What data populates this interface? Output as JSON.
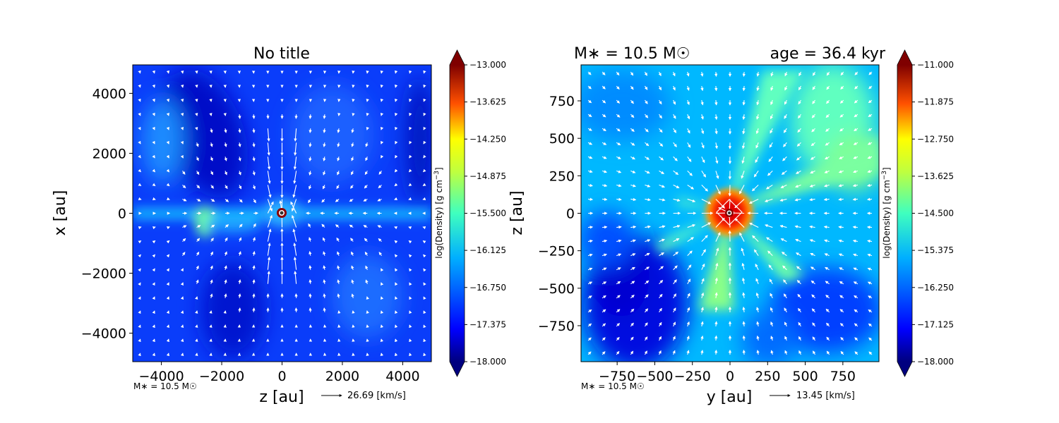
{
  "chart_data": [
    {
      "type": "heatmap",
      "title": "No title",
      "xlabel": "z [au]",
      "ylabel": "x [au]",
      "xlim": [
        -4950,
        4950
      ],
      "ylim": [
        -4950,
        4950
      ],
      "xticks": [
        -4000,
        -2000,
        0,
        2000,
        4000
      ],
      "yticks": [
        -4000,
        -2000,
        0,
        2000,
        4000
      ],
      "xtick_labels": [
        "−4000",
        "−2000",
        "0",
        "2000",
        "4000"
      ],
      "ytick_labels": [
        "−4000",
        "−2000",
        "0",
        "2000",
        "4000"
      ],
      "colorbar": {
        "label": "log(Density) [g cm",
        "label_sup": "−3",
        "label_end": "]",
        "range": [
          -18.0,
          -13.0
        ],
        "ticks": [
          -13.0,
          -13.625,
          -14.25,
          -14.875,
          -15.5,
          -16.125,
          -16.75,
          -17.375,
          -18.0
        ],
        "tick_labels": [
          "−13.000",
          "−13.625",
          "−14.250",
          "−14.875",
          "−15.500",
          "−16.125",
          "−16.750",
          "−17.375",
          "−18.000"
        ]
      },
      "annotation_mass": "M∗ = 10.5 M☉",
      "quiver_key": "26.69 [km/s]",
      "features": {
        "star_position": [
          0,
          0
        ],
        "filament": "horizontal high-density band along x = 0",
        "secondary_clump": [
          -2600,
          -300
        ]
      }
    },
    {
      "type": "heatmap",
      "title_left": "M∗ = 10.5 M☉",
      "title_right": "age = 36.4 kyr",
      "xlabel": "y [au]",
      "ylabel": "z [au]",
      "xlim": [
        -990,
        990
      ],
      "ylim": [
        -990,
        990
      ],
      "xticks": [
        -750,
        -500,
        -250,
        0,
        250,
        500,
        750
      ],
      "yticks": [
        -750,
        -500,
        -250,
        0,
        250,
        500,
        750
      ],
      "xtick_labels": [
        "−750",
        "−500",
        "−250",
        "0",
        "250",
        "500",
        "750"
      ],
      "ytick_labels": [
        "−750",
        "−500",
        "−250",
        "0",
        "250",
        "500",
        "750"
      ],
      "colorbar": {
        "label": "log(Density) [g cm",
        "label_sup": "−3",
        "label_end": "]",
        "range": [
          -18.0,
          -11.0
        ],
        "ticks": [
          -11.0,
          -11.875,
          -12.75,
          -13.625,
          -14.5,
          -15.375,
          -16.25,
          -17.125,
          -18.0
        ],
        "tick_labels": [
          "−11.000",
          "−11.875",
          "−12.750",
          "−13.625",
          "−14.500",
          "−15.375",
          "−16.250",
          "−17.125",
          "−18.000"
        ]
      },
      "annotation_mass": "M∗ = 10.5 M☉",
      "quiver_key": "13.45 [km/s]",
      "features": {
        "star_position": [
          0,
          0
        ],
        "dense_core_radius": 90
      }
    }
  ],
  "colors": {
    "jet": [
      "#00007f",
      "#0000ff",
      "#007fff",
      "#00ffff",
      "#7fff7f",
      "#ffff00",
      "#ff7f00",
      "#ff0000",
      "#7f0000"
    ],
    "arrow": "#ffffff"
  }
}
